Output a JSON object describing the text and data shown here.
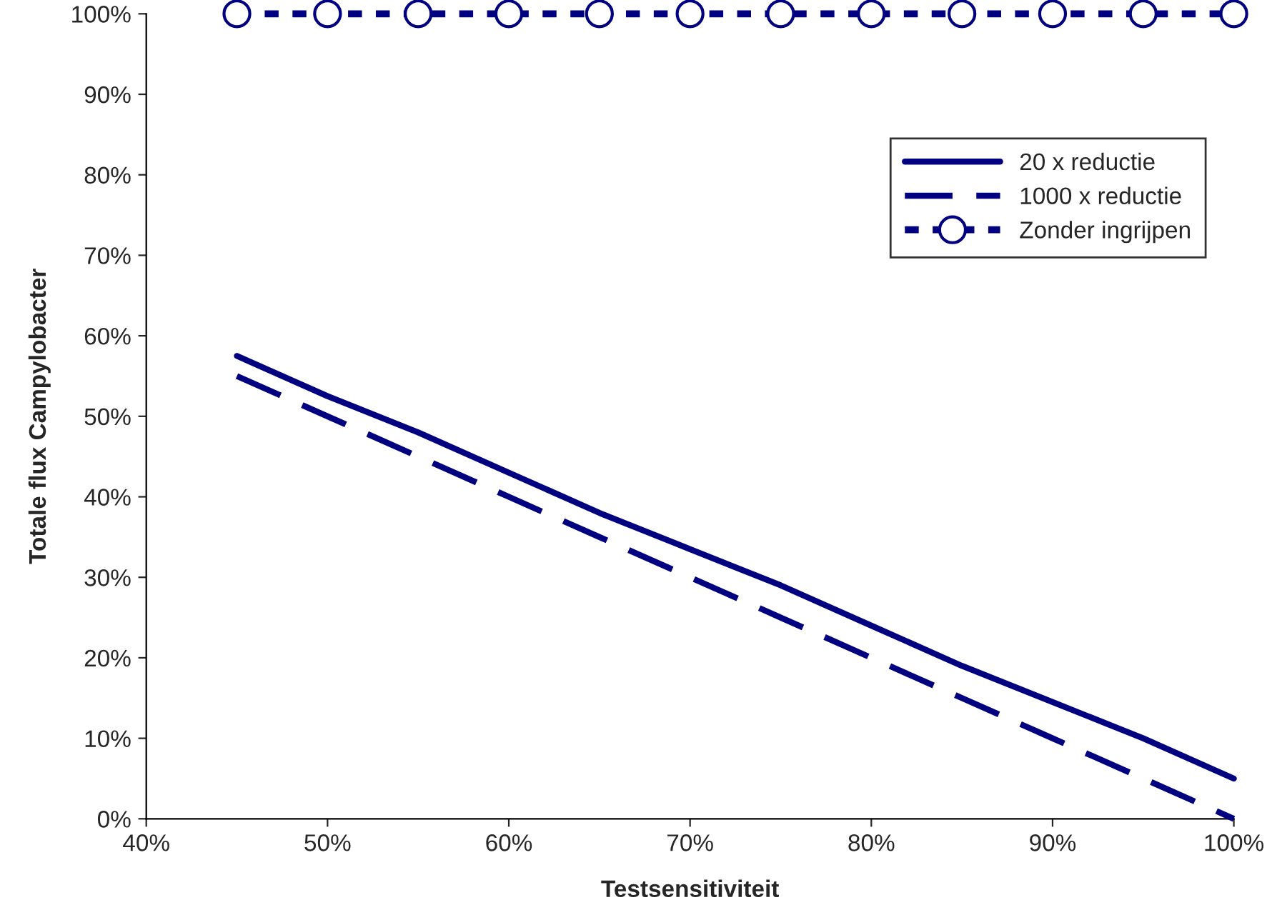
{
  "chart_data": {
    "type": "line",
    "xlabel": "Testsensitiviteit",
    "ylabel": "Totale flux Campylobacter",
    "x": [
      45,
      50,
      55,
      60,
      65,
      70,
      75,
      80,
      85,
      90,
      95,
      100
    ],
    "series": [
      {
        "name": "20 x reductie",
        "color": "#000080",
        "line_style": "solid",
        "marker": "none",
        "values": [
          57.5,
          52.5,
          48,
          43,
          38,
          33.5,
          29,
          24,
          19,
          14.5,
          10,
          5
        ]
      },
      {
        "name": "1000 x reductie",
        "color": "#000080",
        "line_style": "dashed",
        "marker": "none",
        "values": [
          55,
          50,
          45,
          40,
          35,
          30,
          25,
          20,
          15,
          10,
          5,
          0
        ]
      },
      {
        "name": "Zonder ingrijpen",
        "color": "#000080",
        "line_style": "dotted",
        "marker": "circle",
        "values": [
          100,
          100,
          100,
          100,
          100,
          100,
          100,
          100,
          100,
          100,
          100,
          100
        ]
      }
    ],
    "xlim": [
      40,
      100
    ],
    "xticks": [
      {
        "value": 40,
        "label": "40%"
      },
      {
        "value": 50,
        "label": "50%"
      },
      {
        "value": 60,
        "label": "60%"
      },
      {
        "value": 70,
        "label": "70%"
      },
      {
        "value": 80,
        "label": "80%"
      },
      {
        "value": 90,
        "label": "90%"
      },
      {
        "value": 100,
        "label": "100%"
      }
    ],
    "ylim": [
      0,
      100
    ],
    "yticks": [
      {
        "value": 0,
        "label": "0%"
      },
      {
        "value": 10,
        "label": "10%"
      },
      {
        "value": 20,
        "label": "20%"
      },
      {
        "value": 30,
        "label": "30%"
      },
      {
        "value": 40,
        "label": "40%"
      },
      {
        "value": 50,
        "label": "50%"
      },
      {
        "value": 60,
        "label": "60%"
      },
      {
        "value": 70,
        "label": "70%"
      },
      {
        "value": 80,
        "label": "80%"
      },
      {
        "value": 90,
        "label": "90%"
      },
      {
        "value": 100,
        "label": "100%"
      }
    ],
    "grid": false,
    "legend": "top right"
  }
}
